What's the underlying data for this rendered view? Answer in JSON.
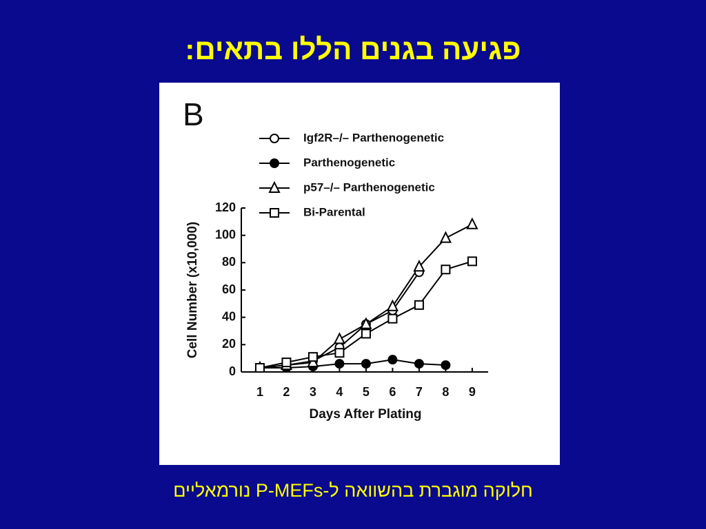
{
  "slide": {
    "title": "פגיעה בגנים הללו בתאים:",
    "caption": "חלוקה מוגברת בהשוואה ל-P-MEFs נורמאליים"
  },
  "chart_data": {
    "type": "line",
    "panel_label": "B",
    "x_label": "Days After Plating",
    "y_label": "Cell Number (x10,000)",
    "x": [
      1,
      2,
      3,
      4,
      5,
      6,
      7,
      8,
      9
    ],
    "series": [
      {
        "name": "Igf2R–/– Parthenogenetic",
        "color": "#000000",
        "marker": "open-circle",
        "values": [
          3,
          5,
          8,
          18,
          35,
          45,
          73,
          null,
          null
        ]
      },
      {
        "name": "Parthenogenetic",
        "color": "#000000",
        "marker": "filled-circle",
        "values": [
          3,
          3,
          4,
          6,
          6,
          9,
          6,
          5,
          null
        ]
      },
      {
        "name": "p57–/– Parthenogenetic",
        "color": "#000000",
        "marker": "open-triangle",
        "values": [
          3,
          5,
          7,
          24,
          35,
          48,
          77,
          98,
          108
        ]
      },
      {
        "name": "Bi-Parental",
        "color": "#000000",
        "marker": "open-square",
        "values": [
          3,
          7,
          11,
          14,
          28,
          39,
          49,
          75,
          81
        ]
      }
    ],
    "xlim": [
      0.3,
      9.6
    ],
    "xticks": [
      1,
      2,
      3,
      4,
      5,
      6,
      7,
      8,
      9
    ],
    "ylim": [
      0,
      120
    ],
    "yticks": [
      0,
      20,
      40,
      60,
      80,
      100,
      120
    ],
    "legend": "upper left"
  }
}
